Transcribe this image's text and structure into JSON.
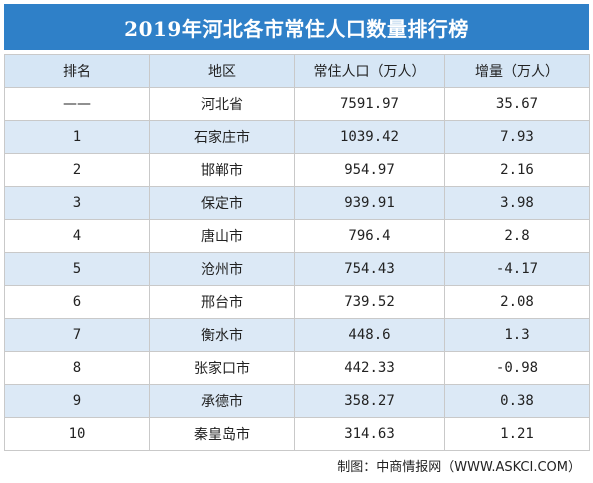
{
  "title": "2019年河北各市常住人口数量排行榜",
  "table": {
    "headers": [
      "排名",
      "地区",
      "常住人口（万人）",
      "增量（万人）"
    ],
    "rows": [
      {
        "rank": "——",
        "region": "河北省",
        "population": "7591.97",
        "increase": "35.67"
      },
      {
        "rank": "1",
        "region": "石家庄市",
        "population": "1039.42",
        "increase": "7.93"
      },
      {
        "rank": "2",
        "region": "邯郸市",
        "population": "954.97",
        "increase": "2.16"
      },
      {
        "rank": "3",
        "region": "保定市",
        "population": "939.91",
        "increase": "3.98"
      },
      {
        "rank": "4",
        "region": "唐山市",
        "population": "796.4",
        "increase": "2.8"
      },
      {
        "rank": "5",
        "region": "沧州市",
        "population": "754.43",
        "increase": "-4.17"
      },
      {
        "rank": "6",
        "region": "邢台市",
        "population": "739.52",
        "increase": "2.08"
      },
      {
        "rank": "7",
        "region": "衡水市",
        "population": "448.6",
        "increase": "1.3"
      },
      {
        "rank": "8",
        "region": "张家口市",
        "population": "442.33",
        "increase": "-0.98"
      },
      {
        "rank": "9",
        "region": "承德市",
        "population": "358.27",
        "increase": "0.38"
      },
      {
        "rank": "10",
        "region": "秦皇岛市",
        "population": "314.63",
        "increase": "1.21"
      }
    ]
  },
  "source": "制图：中商情报网（WWW.ASKCI.COM）",
  "colors": {
    "title_bg": "#2f80c8",
    "header_bg": "#d6e6f5",
    "stripe_bg": "#dce9f6",
    "border": "#c9c9c9"
  }
}
